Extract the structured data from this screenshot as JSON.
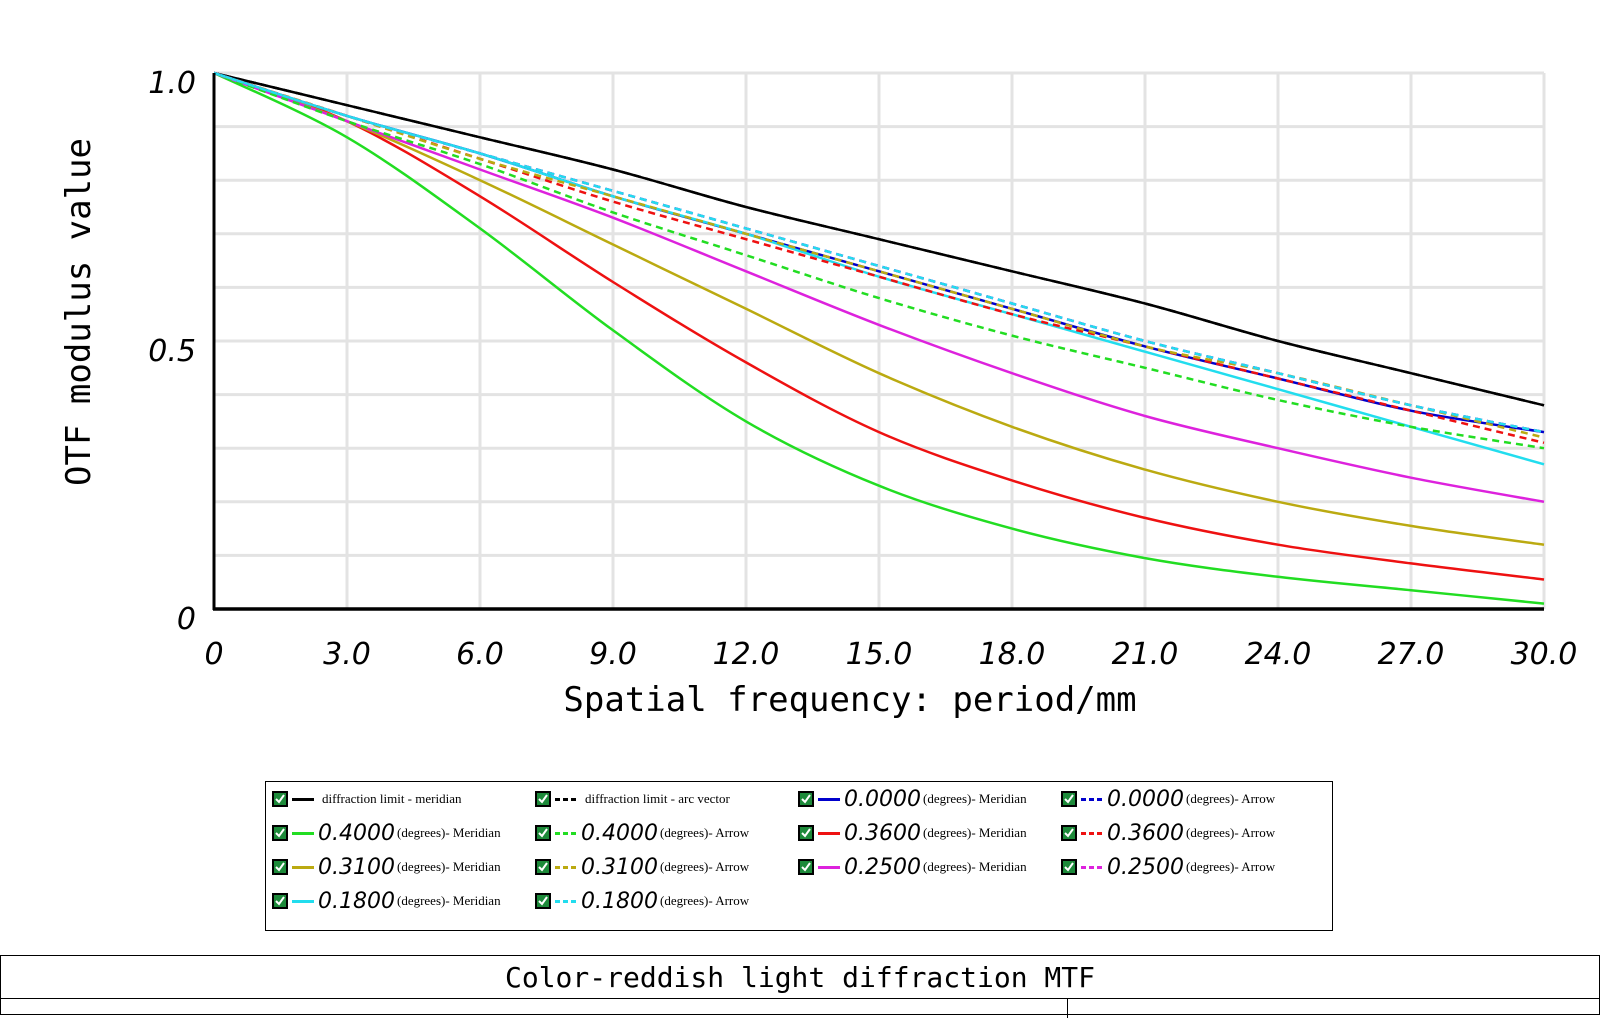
{
  "chart_data": {
    "type": "line",
    "title": "Color-reddish light diffraction MTF",
    "xlabel": "Spatial frequency: period/mm",
    "ylabel": "OTF modulus value",
    "xlim": [
      0,
      30
    ],
    "ylim": [
      0,
      1
    ],
    "x_ticks": [
      "0",
      "3.0",
      "6.0",
      "9.0",
      "12.0",
      "15.0",
      "18.0",
      "21.0",
      "24.0",
      "27.0",
      "30.0"
    ],
    "y_ticks": [
      "0",
      "0.5",
      "1.0"
    ],
    "grid": true,
    "legend_position": "bottom",
    "x": [
      0,
      3,
      6,
      9,
      12,
      15,
      18,
      21,
      24,
      27,
      30
    ],
    "series": [
      {
        "legend_text": "diffraction limit - meridian",
        "color": "#000000",
        "dash": false,
        "values": [
          1.0,
          0.94,
          0.88,
          0.82,
          0.75,
          0.69,
          0.63,
          0.57,
          0.5,
          0.44,
          0.38
        ]
      },
      {
        "legend_text": "diffraction limit - arc vector",
        "color": "#000000",
        "dash": true,
        "values": [
          1.0,
          0.94,
          0.88,
          0.82,
          0.75,
          0.69,
          0.63,
          0.57,
          0.5,
          0.44,
          0.38
        ]
      },
      {
        "legend_value": "0.0000",
        "legend_unit": "(degrees)- Meridian",
        "color": "#0000cc",
        "dash": false,
        "values": [
          1.0,
          0.92,
          0.85,
          0.77,
          0.7,
          0.63,
          0.56,
          0.49,
          0.43,
          0.37,
          0.33
        ]
      },
      {
        "legend_value": "0.0000",
        "legend_unit": "(degrees)- Arrow",
        "color": "#0000cc",
        "dash": true,
        "values": [
          1.0,
          0.92,
          0.85,
          0.78,
          0.71,
          0.64,
          0.57,
          0.5,
          0.44,
          0.38,
          0.33
        ]
      },
      {
        "legend_value": "0.4000",
        "legend_unit": "(degrees)- Meridian",
        "color": "#22dd22",
        "dash": false,
        "values": [
          1.0,
          0.88,
          0.71,
          0.52,
          0.35,
          0.23,
          0.15,
          0.095,
          0.06,
          0.035,
          0.01
        ]
      },
      {
        "legend_value": "0.4000",
        "legend_unit": "(degrees)- Arrow",
        "color": "#22dd22",
        "dash": true,
        "values": [
          1.0,
          0.91,
          0.83,
          0.74,
          0.66,
          0.58,
          0.51,
          0.45,
          0.39,
          0.34,
          0.3
        ]
      },
      {
        "legend_value": "0.3600",
        "legend_unit": "(degrees)- Meridian",
        "color": "#ee1111",
        "dash": false,
        "values": [
          1.0,
          0.91,
          0.77,
          0.61,
          0.46,
          0.33,
          0.24,
          0.17,
          0.12,
          0.085,
          0.055
        ]
      },
      {
        "legend_value": "0.3600",
        "legend_unit": "(degrees)- Arrow",
        "color": "#ee1111",
        "dash": true,
        "values": [
          1.0,
          0.92,
          0.84,
          0.76,
          0.69,
          0.62,
          0.55,
          0.49,
          0.43,
          0.37,
          0.31
        ]
      },
      {
        "legend_value": "0.3100",
        "legend_unit": "(degrees)- Meridian",
        "color": "#bbaa11",
        "dash": false,
        "values": [
          1.0,
          0.91,
          0.8,
          0.68,
          0.56,
          0.44,
          0.34,
          0.26,
          0.2,
          0.155,
          0.12
        ]
      },
      {
        "legend_value": "0.3100",
        "legend_unit": "(degrees)- Arrow",
        "color": "#bbaa11",
        "dash": true,
        "values": [
          1.0,
          0.92,
          0.84,
          0.77,
          0.7,
          0.63,
          0.56,
          0.49,
          0.44,
          0.38,
          0.32
        ]
      },
      {
        "legend_value": "0.2500",
        "legend_unit": "(degrees)- Meridian",
        "color": "#dd22dd",
        "dash": false,
        "values": [
          1.0,
          0.91,
          0.82,
          0.73,
          0.63,
          0.53,
          0.44,
          0.36,
          0.3,
          0.245,
          0.2
        ]
      },
      {
        "legend_value": "0.2500",
        "legend_unit": "(degrees)- Arrow",
        "color": "#dd22dd",
        "dash": true,
        "values": [
          1.0,
          0.92,
          0.85,
          0.78,
          0.71,
          0.64,
          0.57,
          0.5,
          0.44,
          0.38,
          0.33
        ]
      },
      {
        "legend_value": "0.1800",
        "legend_unit": "(degrees)- Meridian",
        "color": "#22ddee",
        "dash": false,
        "values": [
          1.0,
          0.92,
          0.85,
          0.77,
          0.7,
          0.62,
          0.55,
          0.48,
          0.41,
          0.34,
          0.27
        ]
      },
      {
        "legend_value": "0.1800",
        "legend_unit": "(degrees)- Arrow",
        "color": "#22ddee",
        "dash": true,
        "values": [
          1.0,
          0.92,
          0.85,
          0.78,
          0.71,
          0.64,
          0.57,
          0.5,
          0.44,
          0.38,
          0.33
        ]
      }
    ]
  }
}
